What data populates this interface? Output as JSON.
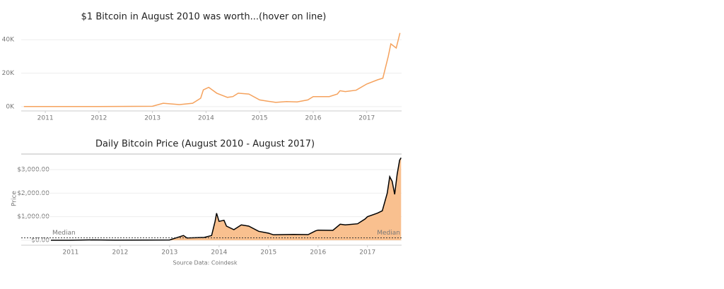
{
  "chart_data": [
    {
      "type": "line",
      "title": "$1 Bitcoin in  August 2010 was worth...(hover on line)",
      "color": "#f5a25d",
      "grid": true,
      "x": [
        2010.6,
        2011.0,
        2012.0,
        2013.0,
        2013.2,
        2013.5,
        2013.75,
        2013.9,
        2013.95,
        2014.05,
        2014.2,
        2014.4,
        2014.5,
        2014.6,
        2014.8,
        2015.0,
        2015.1,
        2015.3,
        2015.5,
        2015.7,
        2015.9,
        2016.0,
        2016.3,
        2016.45,
        2016.5,
        2016.6,
        2016.8,
        2017.0,
        2017.2,
        2017.3,
        2017.4,
        2017.45,
        2017.55,
        2017.62
      ],
      "values": [
        0,
        0,
        70,
        200,
        2000,
        1200,
        2000,
        5000,
        10000,
        11500,
        8000,
        5500,
        6000,
        8000,
        7500,
        4000,
        3500,
        2500,
        3000,
        2800,
        4000,
        6000,
        6000,
        7500,
        9500,
        9000,
        9800,
        13500,
        16000,
        17000,
        30000,
        37500,
        35000,
        44000
      ],
      "xlim": [
        2010.55,
        2017.65
      ],
      "xticks": [
        2011,
        2012,
        2013,
        2014,
        2015,
        2016,
        2017
      ],
      "ylim": [
        -2600,
        46000
      ],
      "yticks": [
        {
          "value": 0,
          "label": "0K"
        },
        {
          "value": 20000,
          "label": "20K"
        },
        {
          "value": 40000,
          "label": "40K"
        }
      ]
    },
    {
      "type": "area",
      "title": "Daily Bitcoin Price (August 2010 - August 2017)",
      "y_label": "Price",
      "source": "Source Data: Coindesk",
      "color": "#f9c08f",
      "line_color": "#000000",
      "grid": true,
      "median": {
        "label": "Median",
        "value": 100
      },
      "x": [
        2010.6,
        2011.0,
        2011.45,
        2011.9,
        2012.5,
        2013.0,
        2013.28,
        2013.35,
        2013.7,
        2013.85,
        2013.92,
        2013.95,
        2014.0,
        2014.1,
        2014.15,
        2014.3,
        2014.45,
        2014.6,
        2014.8,
        2015.0,
        2015.1,
        2015.5,
        2015.8,
        2015.95,
        2016.0,
        2016.3,
        2016.45,
        2016.55,
        2016.8,
        2016.95,
        2017.0,
        2017.2,
        2017.3,
        2017.4,
        2017.45,
        2017.5,
        2017.55,
        2017.6,
        2017.65,
        2017.68
      ],
      "values": [
        0.07,
        0.3,
        15,
        3,
        7,
        13,
        200,
        100,
        120,
        200,
        800,
        1150,
        800,
        850,
        600,
        450,
        650,
        600,
        380,
        300,
        230,
        250,
        240,
        400,
        430,
        420,
        680,
        650,
        700,
        900,
        1000,
        1150,
        1250,
        2000,
        2700,
        2500,
        1950,
        2800,
        3400,
        3500
      ],
      "xlim": [
        2010.0,
        2017.69
      ],
      "xticks": [
        2011,
        2012,
        2013,
        2014,
        2015,
        2016,
        2017
      ],
      "ylim": [
        -210,
        3660
      ],
      "yticks": [
        {
          "value": 0,
          "label": "$0.00"
        },
        {
          "value": 1000,
          "label": "$1,000.00"
        },
        {
          "value": 2000,
          "label": "$2,000.00"
        },
        {
          "value": 3000,
          "label": "$3,000.00"
        }
      ]
    }
  ]
}
